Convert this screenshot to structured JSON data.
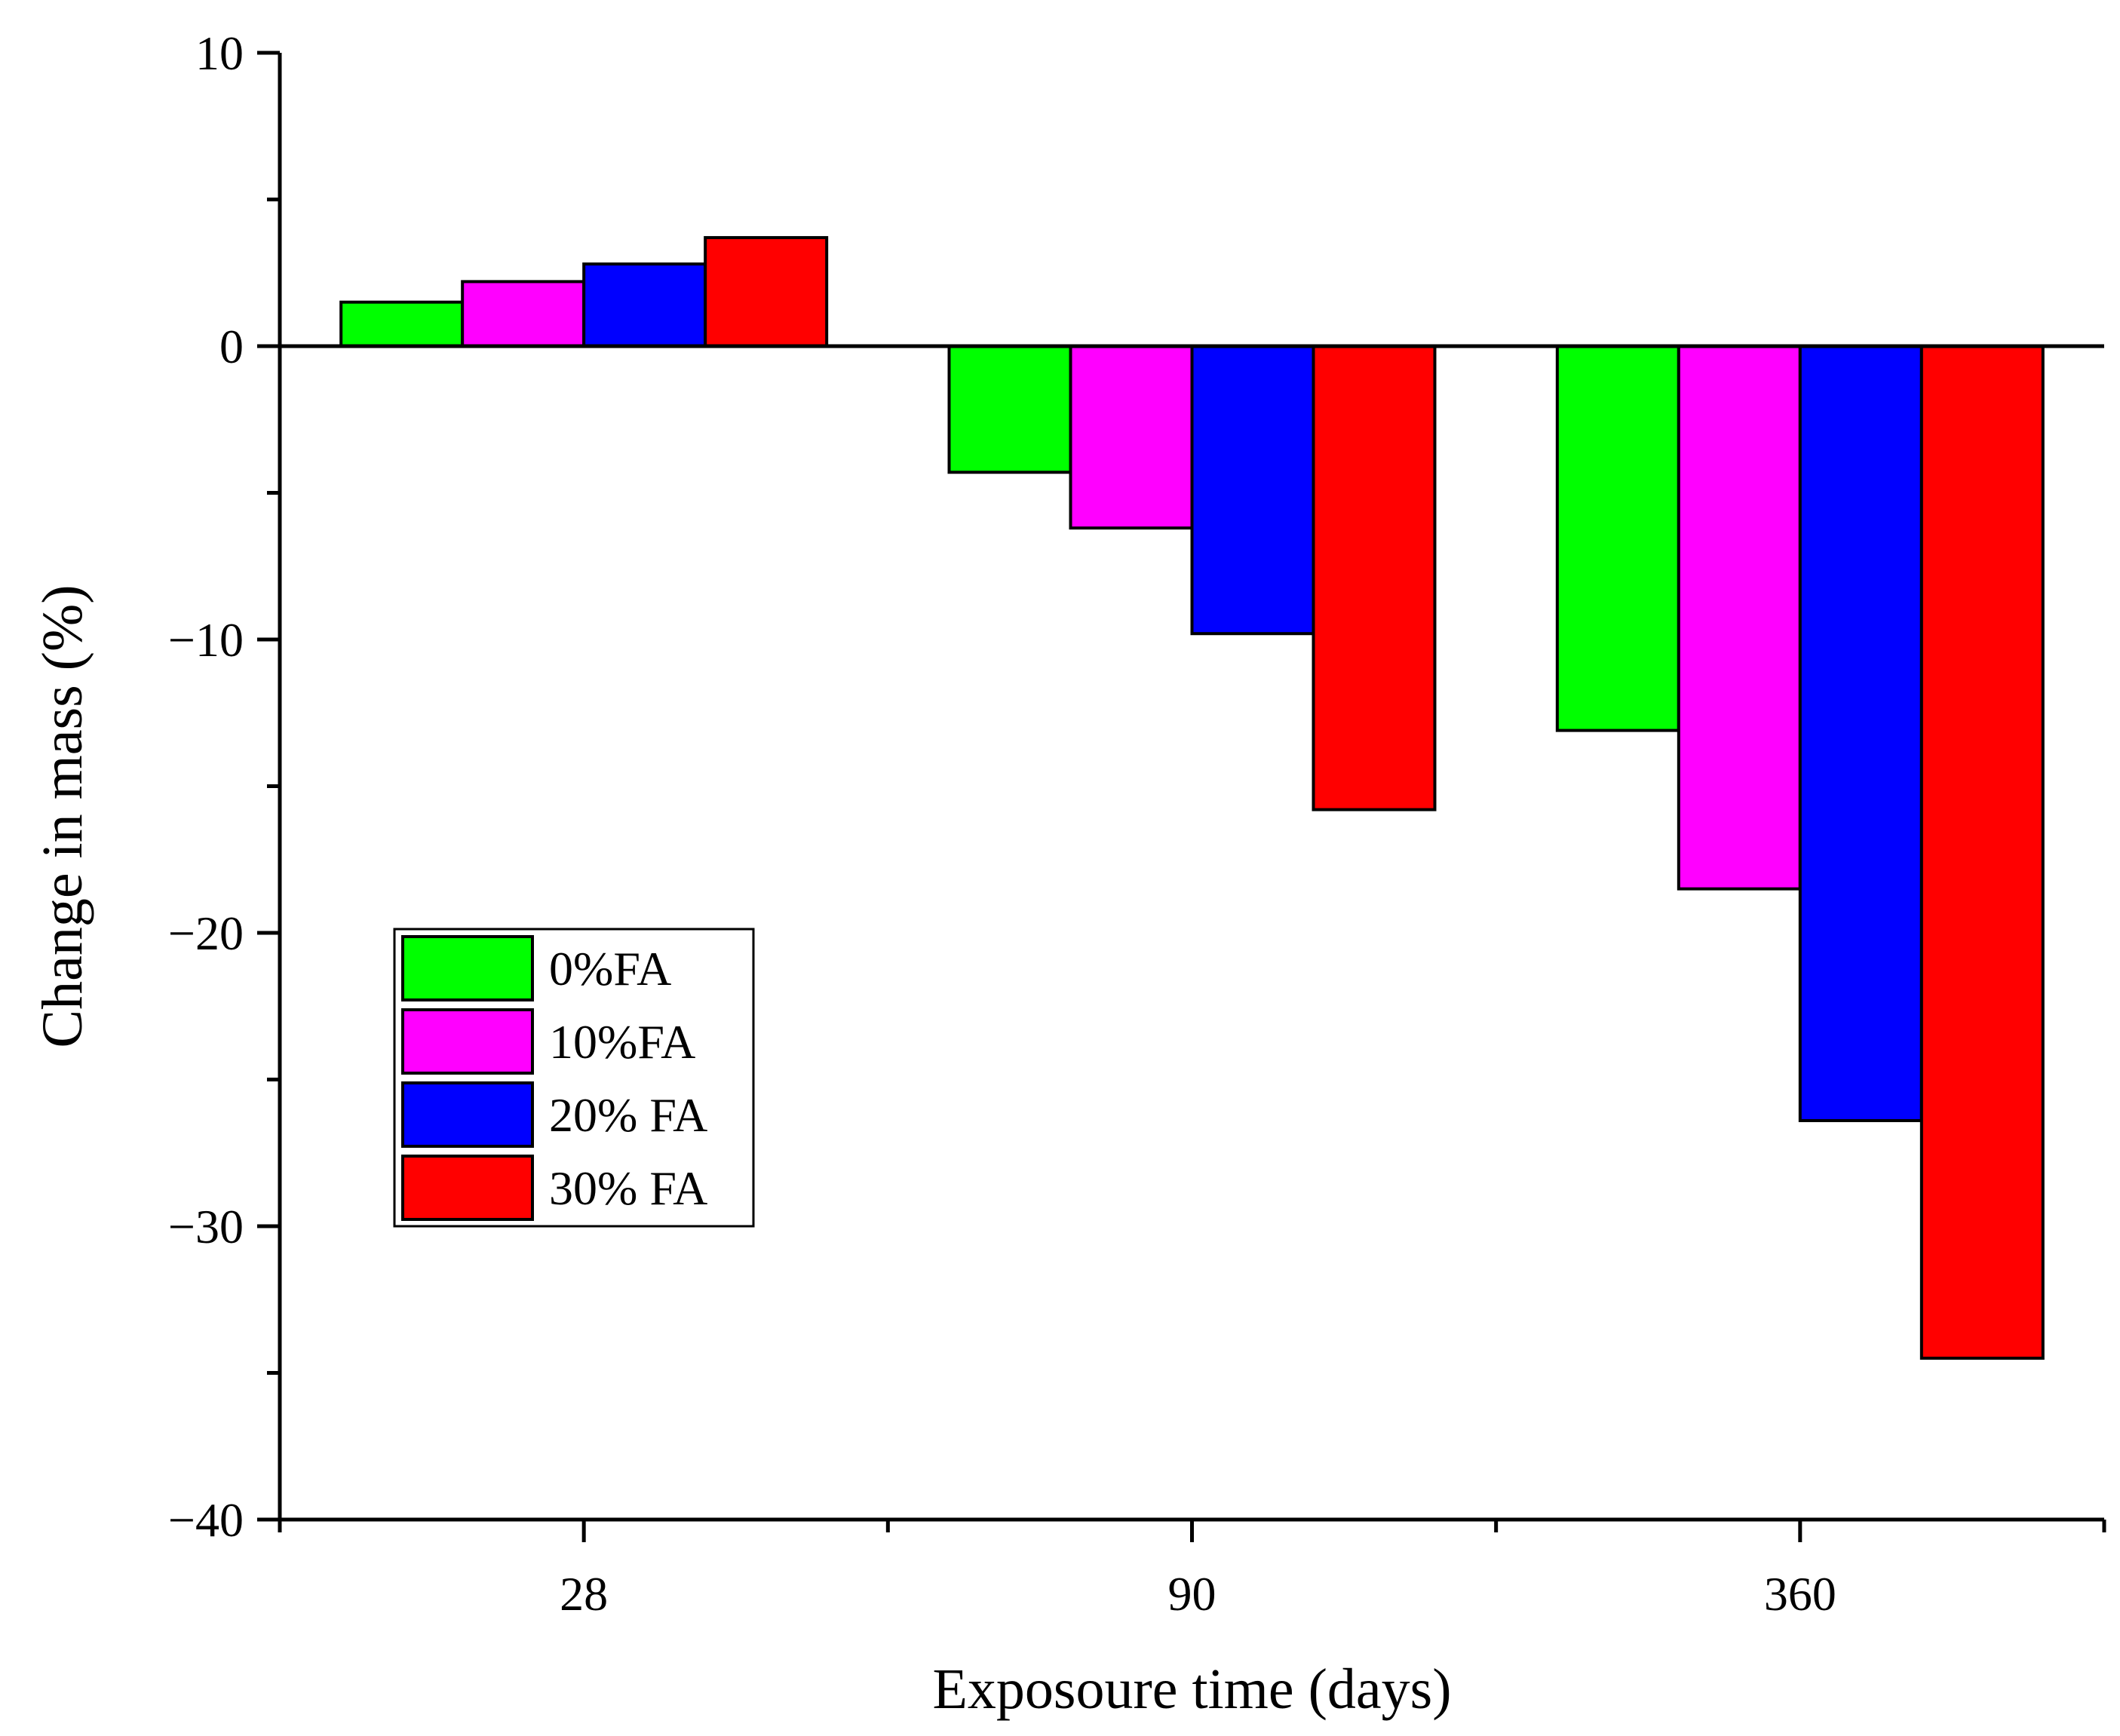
{
  "chart_data": {
    "type": "bar",
    "title": "",
    "xlabel": "Exposoure time (days)",
    "ylabel": "Change in mass (%)",
    "categories": [
      "28",
      "90",
      "360"
    ],
    "ylim": [
      -40,
      10
    ],
    "yticks": [
      10,
      0,
      -10,
      -20,
      -30,
      -40
    ],
    "ytick_labels": [
      "10",
      "0",
      "−10",
      "−20",
      "−30",
      "−40"
    ],
    "series": [
      {
        "name": "0%FA",
        "color": "#00ff00",
        "values": [
          1.5,
          -4.3,
          -13.1
        ]
      },
      {
        "name": "10%FA",
        "color": "#ff00ff",
        "values": [
          2.2,
          -6.2,
          -18.5
        ]
      },
      {
        "name": "20% FA",
        "color": "#0000ff",
        "values": [
          2.8,
          -9.8,
          -26.4
        ]
      },
      {
        "name": "30% FA",
        "color": "#ff0000",
        "values": [
          3.7,
          -15.8,
          -34.5
        ]
      }
    ],
    "legend_position": "lower-left",
    "grid": false
  }
}
